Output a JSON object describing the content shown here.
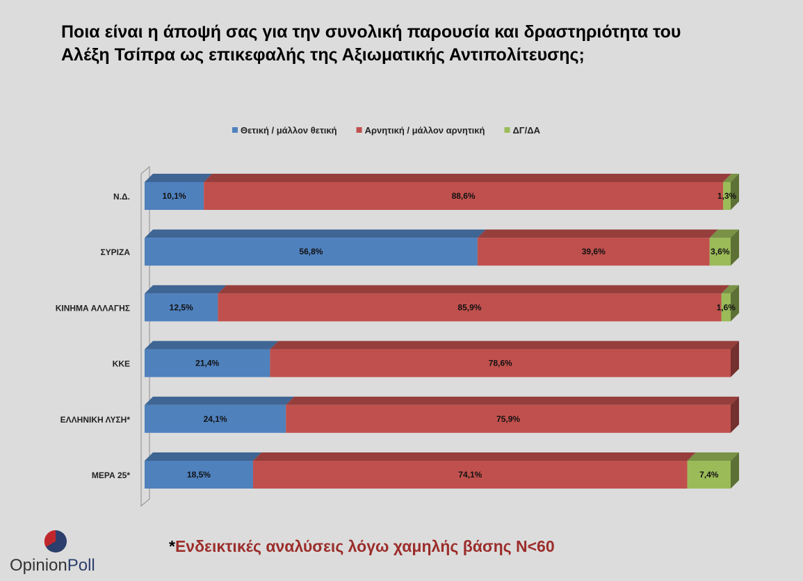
{
  "title": {
    "line1": "Ποια είναι η άποψή σας για την συνολική παρουσία και δραστηριότητα του",
    "line2": "Αλέξη Τσίπρα ως επικεφαλής της Αξιωματικής Αντιπολίτευσης;"
  },
  "chart_data": {
    "type": "bar",
    "orientation": "horizontal",
    "stacked": true,
    "percent_stacked": true,
    "three_d": true,
    "legend_position": "top",
    "categories": [
      "Ν.Δ.",
      "ΣΥΡΙΖΑ",
      "ΚΙΝΗΜΑ ΑΛΛΑΓΗΣ",
      "ΚΚΕ",
      "ΕΛΛΗΝΙΚΗ ΛΥΣΗ*",
      "ΜΕΡΑ 25*"
    ],
    "series": [
      {
        "name": "Θετική / μάλλον θετική",
        "color": "#4f81bd",
        "values": [
          10.1,
          56.8,
          12.5,
          21.4,
          24.1,
          18.5
        ],
        "labels": [
          "10,1%",
          "56,8%",
          "12,5%",
          "21,4%",
          "24,1%",
          "18,5%"
        ]
      },
      {
        "name": "Αρνητική / μάλλον αρνητική",
        "color": "#c0504d",
        "values": [
          88.6,
          39.6,
          85.9,
          78.6,
          75.9,
          74.1
        ],
        "labels": [
          "88,6%",
          "39,6%",
          "85,9%",
          "78,6%",
          "75,9%",
          "74,1%"
        ]
      },
      {
        "name": "ΔΓ/ΔΑ",
        "color": "#9bbb59",
        "values": [
          1.3,
          3.6,
          1.6,
          0,
          0,
          7.4
        ],
        "labels": [
          "1,3%",
          "3,6%",
          "1,6%",
          "",
          "",
          "7,4%"
        ]
      }
    ],
    "xlim": [
      0,
      100
    ]
  },
  "footnote": {
    "star": "*",
    "text": "Ενδεικτικές αναλύσεις λόγω χαμηλής βάσης Ν<60"
  },
  "logo": {
    "part1": "Opinion",
    "part2": "Poll"
  }
}
